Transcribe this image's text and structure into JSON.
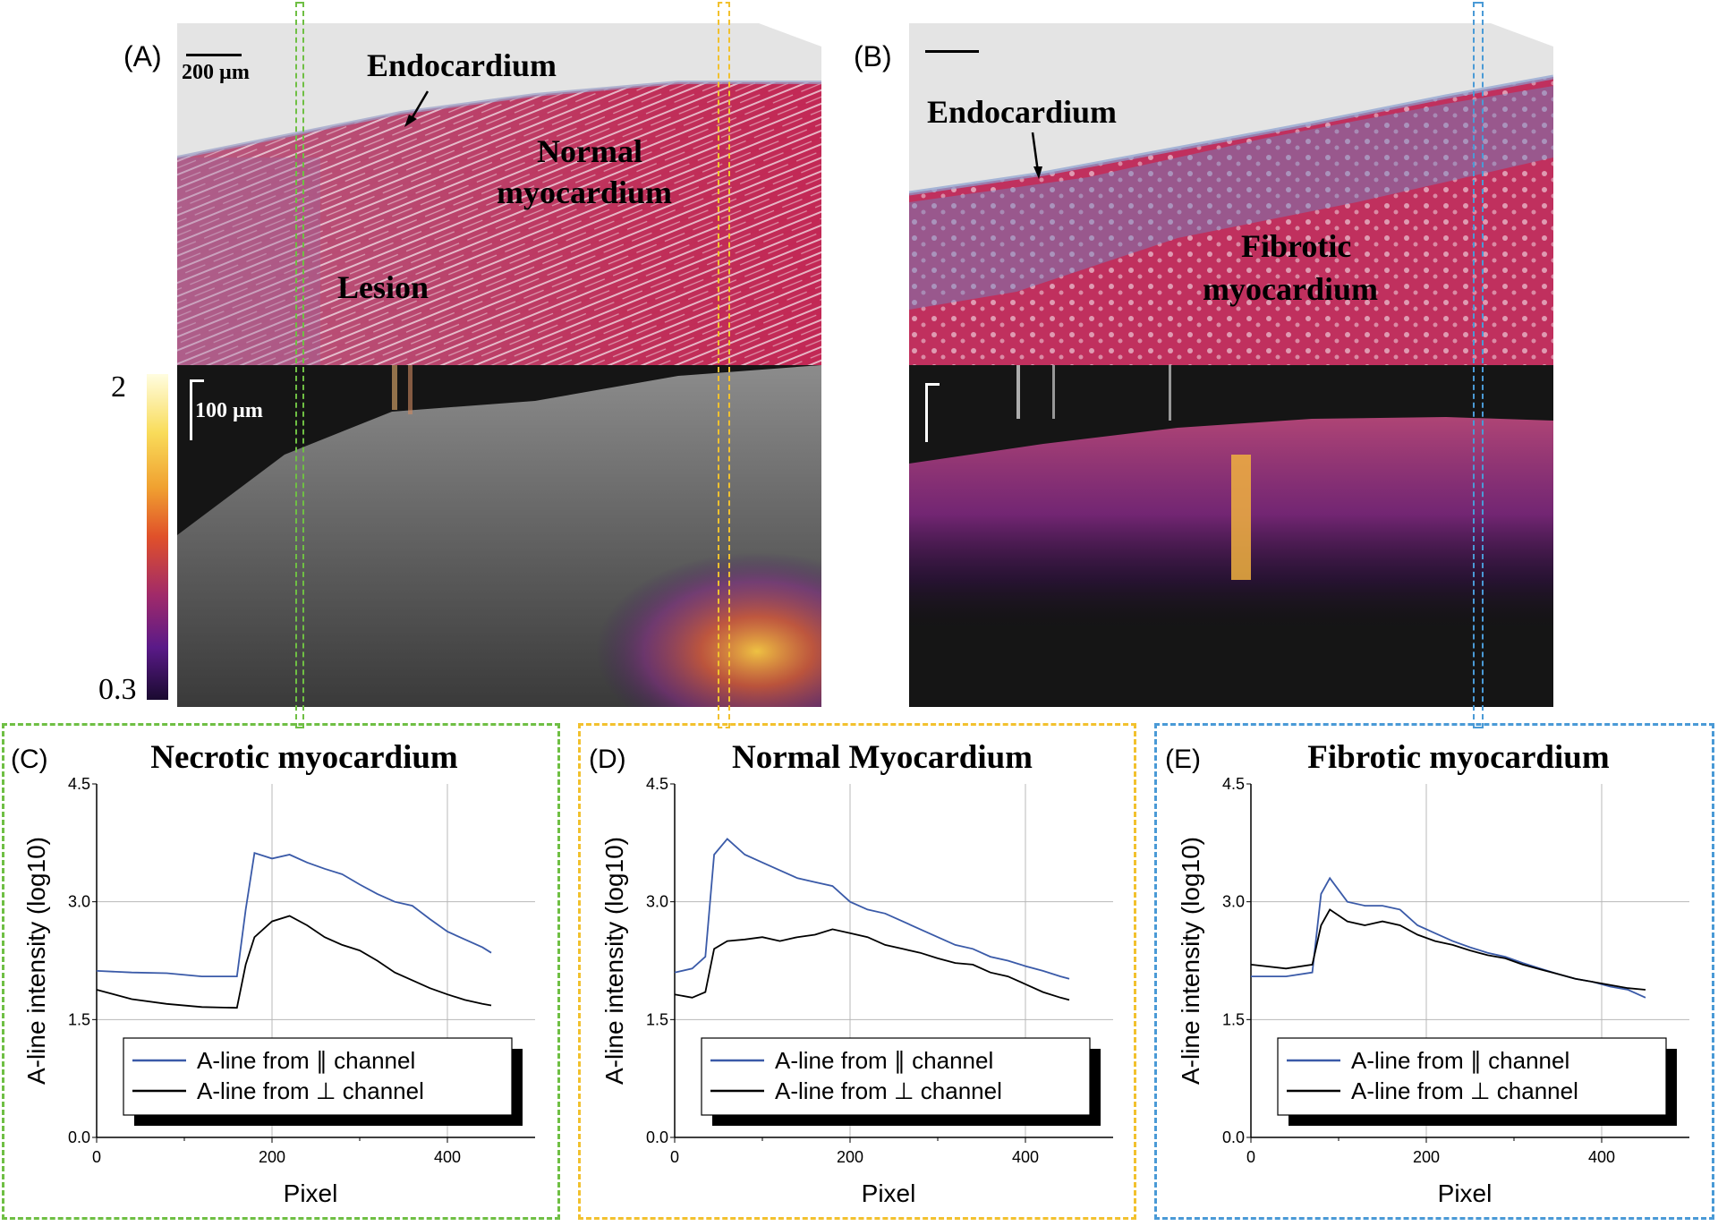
{
  "panels": {
    "A": {
      "label": "(A)",
      "scalebar_top": "200 µm",
      "scalebar_bottom": "100 µm",
      "annotations": [
        "Endocardium",
        "Normal",
        "myocardium",
        "Lesion"
      ]
    },
    "B": {
      "label": "(B)",
      "annotations": [
        "Endocardium",
        "Fibrotic",
        "myocardium"
      ]
    }
  },
  "colorbar": {
    "max": "2",
    "min": "0.3"
  },
  "colors": {
    "green_box": "#6fbf44",
    "yellow_box": "#f2c12e",
    "blue_box": "#4a9ad6",
    "parallel_line": "#3a5aa8",
    "perp_line": "#000000"
  },
  "chart_data": [
    {
      "panel_label": "(C)",
      "type": "line",
      "title": "Necrotic myocardium",
      "xlabel": "Pixel",
      "ylabel": "A-line intensity (log10)",
      "xlim": [
        0,
        500
      ],
      "ylim": [
        0,
        4.5
      ],
      "xticks": [
        "0",
        "200",
        "400"
      ],
      "yticks": [
        "0.0",
        "1.5",
        "3.0",
        "4.5"
      ],
      "legend": [
        "A-line from ∥ channel",
        "A-line from ⊥ channel"
      ],
      "series": [
        {
          "name": "A-line from ∥ channel",
          "x": [
            0,
            40,
            80,
            120,
            160,
            170,
            180,
            200,
            220,
            240,
            260,
            280,
            300,
            320,
            340,
            360,
            380,
            400,
            420,
            440,
            450
          ],
          "y": [
            2.12,
            2.1,
            2.09,
            2.05,
            2.05,
            2.9,
            3.62,
            3.55,
            3.6,
            3.5,
            3.42,
            3.35,
            3.22,
            3.1,
            3.0,
            2.95,
            2.78,
            2.62,
            2.52,
            2.42,
            2.35
          ]
        },
        {
          "name": "A-line from ⊥ channel",
          "x": [
            0,
            40,
            80,
            120,
            160,
            170,
            180,
            200,
            220,
            240,
            260,
            280,
            300,
            320,
            340,
            360,
            380,
            400,
            420,
            440,
            450
          ],
          "y": [
            1.88,
            1.76,
            1.7,
            1.66,
            1.65,
            2.2,
            2.55,
            2.75,
            2.82,
            2.7,
            2.55,
            2.45,
            2.38,
            2.25,
            2.1,
            2.0,
            1.9,
            1.82,
            1.75,
            1.7,
            1.68
          ]
        }
      ]
    },
    {
      "panel_label": "(D)",
      "type": "line",
      "title": "Normal Myocardium",
      "xlabel": "Pixel",
      "ylabel": "A-line intensity (log10)",
      "xlim": [
        0,
        500
      ],
      "ylim": [
        0,
        4.5
      ],
      "xticks": [
        "0",
        "200",
        "400"
      ],
      "yticks": [
        "0.0",
        "1.5",
        "3.0",
        "4.5"
      ],
      "legend": [
        "A-line from ∥ channel",
        "A-line from ⊥ channel"
      ],
      "series": [
        {
          "name": "A-line from ∥ channel",
          "x": [
            0,
            20,
            35,
            45,
            60,
            80,
            100,
            120,
            140,
            160,
            180,
            200,
            220,
            240,
            260,
            280,
            300,
            320,
            340,
            360,
            380,
            400,
            420,
            440,
            450
          ],
          "y": [
            2.1,
            2.15,
            2.3,
            3.6,
            3.8,
            3.6,
            3.5,
            3.4,
            3.3,
            3.25,
            3.2,
            3.0,
            2.9,
            2.85,
            2.75,
            2.65,
            2.55,
            2.45,
            2.4,
            2.3,
            2.25,
            2.18,
            2.12,
            2.05,
            2.02
          ]
        },
        {
          "name": "A-line from ⊥ channel",
          "x": [
            0,
            20,
            35,
            45,
            60,
            80,
            100,
            120,
            140,
            160,
            180,
            200,
            220,
            240,
            260,
            280,
            300,
            320,
            340,
            360,
            380,
            400,
            420,
            440,
            450
          ],
          "y": [
            1.82,
            1.78,
            1.85,
            2.4,
            2.5,
            2.52,
            2.55,
            2.5,
            2.55,
            2.58,
            2.65,
            2.6,
            2.55,
            2.45,
            2.4,
            2.35,
            2.28,
            2.22,
            2.2,
            2.1,
            2.05,
            1.95,
            1.85,
            1.78,
            1.75
          ]
        }
      ]
    },
    {
      "panel_label": "(E)",
      "type": "line",
      "title": "Fibrotic myocardium",
      "xlabel": "Pixel",
      "ylabel": "A-line intensity (log10)",
      "xlim": [
        0,
        500
      ],
      "ylim": [
        0,
        4.5
      ],
      "xticks": [
        "0",
        "200",
        "400"
      ],
      "yticks": [
        "0.0",
        "1.5",
        "3.0",
        "4.5"
      ],
      "legend": [
        "A-line from ∥ channel",
        "A-line from ⊥ channel"
      ],
      "series": [
        {
          "name": "A-line from ∥ channel",
          "x": [
            0,
            40,
            70,
            80,
            90,
            110,
            130,
            150,
            170,
            190,
            210,
            230,
            250,
            270,
            290,
            310,
            330,
            350,
            370,
            390,
            410,
            430,
            450
          ],
          "y": [
            2.05,
            2.05,
            2.1,
            3.1,
            3.3,
            3.0,
            2.95,
            2.95,
            2.9,
            2.7,
            2.6,
            2.5,
            2.42,
            2.35,
            2.3,
            2.22,
            2.15,
            2.08,
            2.02,
            1.98,
            1.92,
            1.88,
            1.78
          ]
        },
        {
          "name": "A-line from ⊥ channel",
          "x": [
            0,
            40,
            70,
            80,
            90,
            110,
            130,
            150,
            170,
            190,
            210,
            230,
            250,
            270,
            290,
            310,
            330,
            350,
            370,
            390,
            410,
            430,
            450
          ],
          "y": [
            2.2,
            2.15,
            2.2,
            2.7,
            2.9,
            2.75,
            2.7,
            2.75,
            2.7,
            2.58,
            2.5,
            2.45,
            2.38,
            2.32,
            2.28,
            2.2,
            2.14,
            2.08,
            2.02,
            1.98,
            1.94,
            1.9,
            1.88
          ]
        }
      ]
    }
  ]
}
